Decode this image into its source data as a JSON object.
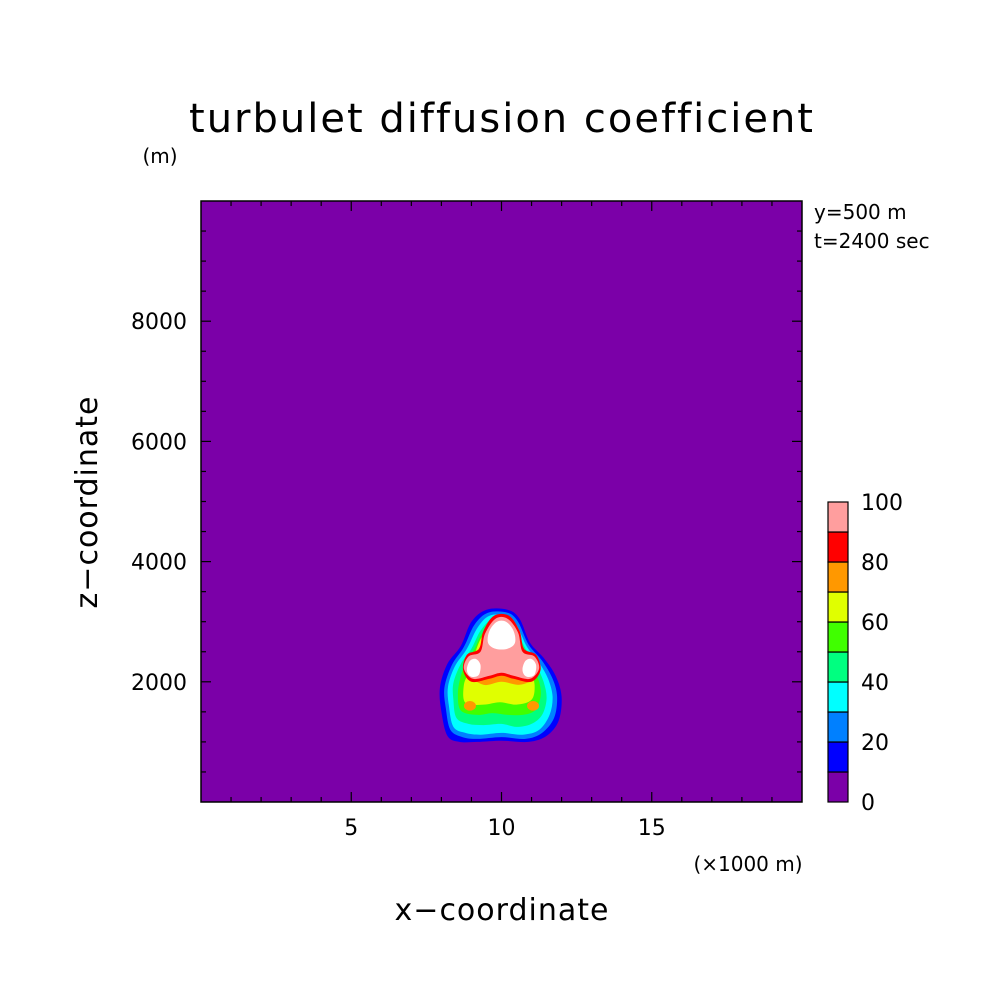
{
  "chart_data": {
    "type": "heatmap",
    "title": "turbulet diffusion coefficient",
    "xlabel": "x−coordinate",
    "ylabel": "z−coordinate",
    "x_unit": "(×1000 m)",
    "y_unit": "(m)",
    "annotations": [
      "y=500 m",
      "t=2400 sec"
    ],
    "xlim": [
      0,
      20
    ],
    "ylim": [
      0,
      10000
    ],
    "x_ticks": [
      5,
      10,
      15
    ],
    "y_ticks": [
      2000,
      4000,
      6000,
      8000
    ],
    "grid": false,
    "background_value": 0,
    "colorbar": {
      "levels": [
        0,
        10,
        20,
        30,
        40,
        50,
        60,
        70,
        80,
        90,
        100
      ],
      "tick_labels": [
        "0",
        "20",
        "40",
        "60",
        "80",
        "100"
      ],
      "colors": [
        "#7b00a8",
        "#0000ff",
        "#0080ff",
        "#00ffff",
        "#00ff80",
        "#40ff00",
        "#e0ff00",
        "#ff9800",
        "#ff0000",
        "#ff9e9e"
      ],
      "over_color": "#ffffff"
    },
    "plume_contours": [
      {
        "level": 10,
        "points": [
          [
            8.2,
            1.1
          ],
          [
            8.0,
            1.5
          ],
          [
            7.95,
            1.9
          ],
          [
            8.2,
            2.3
          ],
          [
            8.65,
            2.6
          ],
          [
            9.0,
            3.0
          ],
          [
            9.5,
            3.2
          ],
          [
            10.2,
            3.2
          ],
          [
            10.6,
            3.05
          ],
          [
            10.95,
            2.65
          ],
          [
            11.4,
            2.4
          ],
          [
            11.8,
            2.1
          ],
          [
            12.0,
            1.75
          ],
          [
            11.9,
            1.35
          ],
          [
            11.5,
            1.1
          ],
          [
            10.9,
            1.0
          ],
          [
            10.0,
            1.02
          ],
          [
            9.2,
            1.0
          ],
          [
            8.6,
            1.0
          ]
        ]
      },
      {
        "level": 20,
        "points": [
          [
            8.3,
            1.2
          ],
          [
            8.15,
            1.55
          ],
          [
            8.1,
            1.9
          ],
          [
            8.35,
            2.28
          ],
          [
            8.75,
            2.58
          ],
          [
            9.1,
            2.95
          ],
          [
            9.55,
            3.15
          ],
          [
            10.2,
            3.15
          ],
          [
            10.55,
            3.0
          ],
          [
            10.9,
            2.62
          ],
          [
            11.35,
            2.35
          ],
          [
            11.7,
            2.05
          ],
          [
            11.85,
            1.75
          ],
          [
            11.75,
            1.4
          ],
          [
            11.35,
            1.15
          ],
          [
            10.8,
            1.05
          ],
          [
            10.0,
            1.08
          ],
          [
            9.2,
            1.05
          ],
          [
            8.7,
            1.08
          ]
        ]
      },
      {
        "level": 30,
        "points": [
          [
            8.4,
            1.25
          ],
          [
            8.25,
            1.6
          ],
          [
            8.22,
            1.92
          ],
          [
            8.45,
            2.26
          ],
          [
            8.85,
            2.55
          ],
          [
            9.2,
            2.9
          ],
          [
            9.6,
            3.1
          ],
          [
            10.2,
            3.1
          ],
          [
            10.5,
            2.95
          ],
          [
            10.85,
            2.58
          ],
          [
            11.25,
            2.32
          ],
          [
            11.55,
            2.05
          ],
          [
            11.7,
            1.75
          ],
          [
            11.6,
            1.45
          ],
          [
            11.25,
            1.2
          ],
          [
            10.7,
            1.12
          ],
          [
            10.0,
            1.15
          ],
          [
            9.3,
            1.12
          ],
          [
            8.8,
            1.15
          ]
        ]
      },
      {
        "level": 40,
        "points": [
          [
            8.5,
            1.4
          ],
          [
            8.4,
            1.7
          ],
          [
            8.4,
            1.98
          ],
          [
            8.65,
            2.3
          ],
          [
            9.0,
            2.55
          ],
          [
            9.3,
            2.85
          ],
          [
            9.7,
            3.05
          ],
          [
            10.2,
            3.05
          ],
          [
            10.45,
            2.9
          ],
          [
            10.8,
            2.55
          ],
          [
            11.15,
            2.28
          ],
          [
            11.4,
            2.0
          ],
          [
            11.5,
            1.72
          ],
          [
            11.35,
            1.45
          ],
          [
            11.0,
            1.3
          ],
          [
            10.5,
            1.25
          ],
          [
            10.0,
            1.3
          ],
          [
            9.4,
            1.28
          ],
          [
            8.9,
            1.3
          ]
        ]
      },
      {
        "level": 50,
        "points": [
          [
            8.65,
            1.52
          ],
          [
            8.55,
            1.8
          ],
          [
            8.65,
            2.1
          ],
          [
            8.85,
            2.35
          ],
          [
            9.1,
            2.55
          ],
          [
            9.35,
            2.8
          ],
          [
            9.75,
            3.0
          ],
          [
            10.2,
            3.0
          ],
          [
            10.4,
            2.85
          ],
          [
            10.7,
            2.5
          ],
          [
            11.0,
            2.25
          ],
          [
            11.25,
            2.0
          ],
          [
            11.3,
            1.75
          ],
          [
            11.1,
            1.52
          ],
          [
            10.7,
            1.45
          ],
          [
            10.2,
            1.45
          ],
          [
            9.7,
            1.48
          ],
          [
            9.2,
            1.45
          ]
        ]
      },
      {
        "level": 60,
        "points": [
          [
            8.8,
            1.65
          ],
          [
            8.75,
            1.95
          ],
          [
            8.95,
            2.2
          ],
          [
            9.1,
            2.45
          ],
          [
            9.35,
            2.75
          ],
          [
            9.8,
            2.95
          ],
          [
            10.2,
            2.95
          ],
          [
            10.4,
            2.8
          ],
          [
            10.65,
            2.5
          ],
          [
            10.95,
            2.2
          ],
          [
            11.1,
            1.95
          ],
          [
            11.0,
            1.7
          ],
          [
            10.5,
            1.62
          ],
          [
            9.95,
            1.66
          ],
          [
            9.4,
            1.62
          ]
        ]
      },
      {
        "level": 70,
        "points": [
          [
            8.85,
            2.15
          ],
          [
            9.1,
            2.35
          ],
          [
            9.3,
            2.6
          ],
          [
            9.6,
            2.9
          ],
          [
            10.0,
            2.95
          ],
          [
            10.35,
            2.82
          ],
          [
            10.65,
            2.5
          ],
          [
            10.9,
            2.22
          ],
          [
            11.05,
            2.05
          ],
          [
            10.6,
            1.95
          ],
          [
            10.0,
            2.0
          ],
          [
            9.4,
            1.95
          ]
        ]
      },
      {
        "level": 80,
        "points": [
          [
            8.72,
            2.2
          ],
          [
            8.85,
            2.45
          ],
          [
            9.25,
            2.55
          ],
          [
            9.4,
            2.85
          ],
          [
            9.75,
            3.1
          ],
          [
            10.25,
            3.1
          ],
          [
            10.6,
            2.85
          ],
          [
            10.75,
            2.55
          ],
          [
            11.15,
            2.45
          ],
          [
            11.3,
            2.2
          ],
          [
            11.0,
            2.0
          ],
          [
            10.4,
            2.05
          ],
          [
            10.0,
            2.1
          ],
          [
            9.6,
            2.05
          ],
          [
            9.0,
            2.0
          ]
        ]
      },
      {
        "level": 90,
        "points": [
          [
            8.75,
            2.22
          ],
          [
            8.9,
            2.42
          ],
          [
            9.3,
            2.5
          ],
          [
            9.45,
            2.8
          ],
          [
            9.8,
            3.05
          ],
          [
            10.2,
            3.05
          ],
          [
            10.55,
            2.82
          ],
          [
            10.7,
            2.5
          ],
          [
            11.1,
            2.42
          ],
          [
            11.25,
            2.22
          ],
          [
            10.95,
            2.05
          ],
          [
            10.4,
            2.1
          ],
          [
            10.0,
            2.15
          ],
          [
            9.6,
            2.1
          ],
          [
            9.05,
            2.05
          ]
        ]
      }
    ],
    "plume_over_regions": [
      {
        "label": "white-top",
        "points": [
          [
            9.55,
            2.65
          ],
          [
            9.6,
            2.85
          ],
          [
            9.85,
            3.0
          ],
          [
            10.15,
            3.0
          ],
          [
            10.4,
            2.85
          ],
          [
            10.45,
            2.65
          ],
          [
            10.2,
            2.55
          ],
          [
            9.8,
            2.55
          ]
        ]
      },
      {
        "label": "white-left",
        "points": [
          [
            8.85,
            2.22
          ],
          [
            8.95,
            2.35
          ],
          [
            9.15,
            2.38
          ],
          [
            9.3,
            2.28
          ],
          [
            9.25,
            2.12
          ],
          [
            9.05,
            2.08
          ],
          [
            8.9,
            2.12
          ]
        ]
      },
      {
        "label": "white-right",
        "points": [
          [
            10.7,
            2.22
          ],
          [
            10.8,
            2.35
          ],
          [
            11.0,
            2.38
          ],
          [
            11.15,
            2.28
          ],
          [
            11.1,
            2.12
          ],
          [
            10.9,
            2.08
          ],
          [
            10.75,
            2.12
          ]
        ]
      }
    ],
    "small_spots": [
      {
        "level": 70,
        "x": 8.95,
        "y": 1.6,
        "rx": 0.2,
        "ry": 0.08
      },
      {
        "level": 70,
        "x": 11.05,
        "y": 1.6,
        "rx": 0.2,
        "ry": 0.08
      }
    ]
  }
}
